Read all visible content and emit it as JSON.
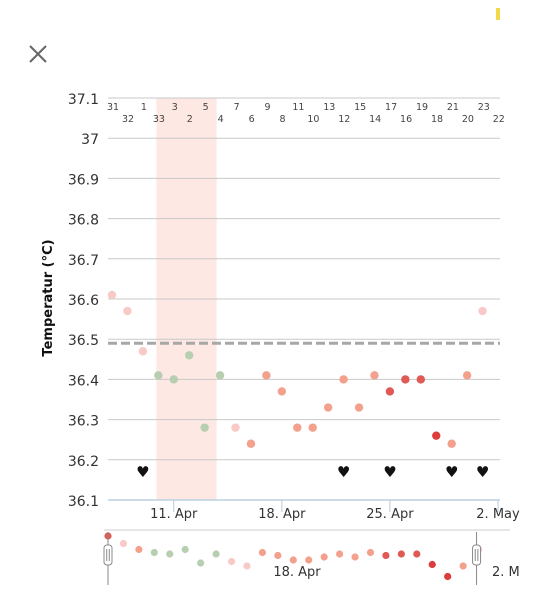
{
  "header": {
    "close_icon": "close-icon",
    "status_color": "#f2d84a"
  },
  "colors": {
    "grid": "#c9c9c9",
    "coverline": "#a7a7a7",
    "period_band": "#fde8e3",
    "green": "#b7cfb0",
    "pink_light": "#f8c9c6",
    "salmon": "#f3a08d",
    "red": "#e05a55",
    "red_dark": "#dc3c3c",
    "heart": "#111111"
  },
  "chart_data": {
    "type": "scatter",
    "ylabel": "Temperatur (°C)",
    "ylim": [
      36.1,
      37.1
    ],
    "yticks": [
      "37.1",
      "37",
      "36.9",
      "36.8",
      "36.7",
      "36.6",
      "36.5",
      "36.4",
      "36.3",
      "36.2",
      "36.1"
    ],
    "coverline": 36.49,
    "x_labels": [
      {
        "label": "11. Apr",
        "day": 11
      },
      {
        "label": "18. Apr",
        "day": 18
      },
      {
        "label": "25. Apr",
        "day": 25
      },
      {
        "label": "2. May",
        "day": 32
      }
    ],
    "cycle_days_top": [
      "31",
      "1",
      "3",
      "5",
      "7",
      "9",
      "11",
      "13",
      "15",
      "17",
      "19",
      "21",
      "23"
    ],
    "cycle_days_bottom": [
      "32",
      "33",
      "2",
      "4",
      "6",
      "8",
      "10",
      "12",
      "14",
      "16",
      "18",
      "20",
      "22"
    ],
    "period_days": [
      10,
      11,
      12,
      13
    ],
    "points": [
      {
        "day": 7,
        "temp": 36.61,
        "tone": "pink_light"
      },
      {
        "day": 8,
        "temp": 36.57,
        "tone": "pink_light"
      },
      {
        "day": 9,
        "temp": 36.47,
        "tone": "pink_light"
      },
      {
        "day": 10,
        "temp": 36.41,
        "tone": "green"
      },
      {
        "day": 11,
        "temp": 36.4,
        "tone": "green"
      },
      {
        "day": 12,
        "temp": 36.46,
        "tone": "green"
      },
      {
        "day": 13,
        "temp": 36.28,
        "tone": "green"
      },
      {
        "day": 14,
        "temp": 36.41,
        "tone": "green"
      },
      {
        "day": 15,
        "temp": 36.28,
        "tone": "pink_light"
      },
      {
        "day": 16,
        "temp": 36.24,
        "tone": "salmon"
      },
      {
        "day": 17,
        "temp": 36.41,
        "tone": "salmon"
      },
      {
        "day": 18,
        "temp": 36.37,
        "tone": "salmon"
      },
      {
        "day": 19,
        "temp": 36.28,
        "tone": "salmon"
      },
      {
        "day": 20,
        "temp": 36.28,
        "tone": "salmon"
      },
      {
        "day": 21,
        "temp": 36.33,
        "tone": "salmon"
      },
      {
        "day": 22,
        "temp": 36.4,
        "tone": "salmon"
      },
      {
        "day": 23,
        "temp": 36.33,
        "tone": "salmon"
      },
      {
        "day": 24,
        "temp": 36.41,
        "tone": "salmon"
      },
      {
        "day": 25,
        "temp": 36.37,
        "tone": "red"
      },
      {
        "day": 26,
        "temp": 36.4,
        "tone": "red"
      },
      {
        "day": 27,
        "temp": 36.4,
        "tone": "red"
      },
      {
        "day": 28,
        "temp": 36.26,
        "tone": "red_dark"
      },
      {
        "day": 29,
        "temp": 36.24,
        "tone": "salmon"
      },
      {
        "day": 30,
        "temp": 36.41,
        "tone": "salmon"
      },
      {
        "day": 31,
        "temp": 36.57,
        "tone": "pink_light"
      }
    ],
    "hearts": [
      9,
      22,
      25,
      29,
      31
    ],
    "grid": true,
    "legend": "none"
  },
  "overview": {
    "date_label": "18. Apr",
    "date_label_right": "2. M",
    "range_start_day": 7,
    "range_end_day": 31,
    "points": [
      {
        "day": 7,
        "tone": "red",
        "lvl": 0.0
      },
      {
        "day": 8,
        "tone": "pink_light",
        "lvl": 0.25
      },
      {
        "day": 9,
        "tone": "salmon",
        "lvl": 0.45
      },
      {
        "day": 10,
        "tone": "green",
        "lvl": 0.55
      },
      {
        "day": 11,
        "tone": "green",
        "lvl": 0.6
      },
      {
        "day": 12,
        "tone": "green",
        "lvl": 0.45
      },
      {
        "day": 13,
        "tone": "green",
        "lvl": 0.9
      },
      {
        "day": 14,
        "tone": "green",
        "lvl": 0.6
      },
      {
        "day": 15,
        "tone": "pink_light",
        "lvl": 0.85
      },
      {
        "day": 16,
        "tone": "pink_light",
        "lvl": 1.0
      },
      {
        "day": 17,
        "tone": "salmon",
        "lvl": 0.55
      },
      {
        "day": 18,
        "tone": "salmon",
        "lvl": 0.65
      },
      {
        "day": 19,
        "tone": "salmon",
        "lvl": 0.8
      },
      {
        "day": 20,
        "tone": "salmon",
        "lvl": 0.8
      },
      {
        "day": 21,
        "tone": "salmon",
        "lvl": 0.7
      },
      {
        "day": 22,
        "tone": "salmon",
        "lvl": 0.6
      },
      {
        "day": 23,
        "tone": "salmon",
        "lvl": 0.7
      },
      {
        "day": 24,
        "tone": "salmon",
        "lvl": 0.55
      },
      {
        "day": 25,
        "tone": "red",
        "lvl": 0.65
      },
      {
        "day": 26,
        "tone": "red",
        "lvl": 0.6
      },
      {
        "day": 27,
        "tone": "red",
        "lvl": 0.6
      },
      {
        "day": 28,
        "tone": "red_dark",
        "lvl": 0.95
      },
      {
        "day": 29,
        "tone": "red_dark",
        "lvl": 1.35
      },
      {
        "day": 30,
        "tone": "salmon",
        "lvl": 1.0
      },
      {
        "day": 31,
        "tone": "pink_light",
        "lvl": 0.45
      }
    ]
  }
}
